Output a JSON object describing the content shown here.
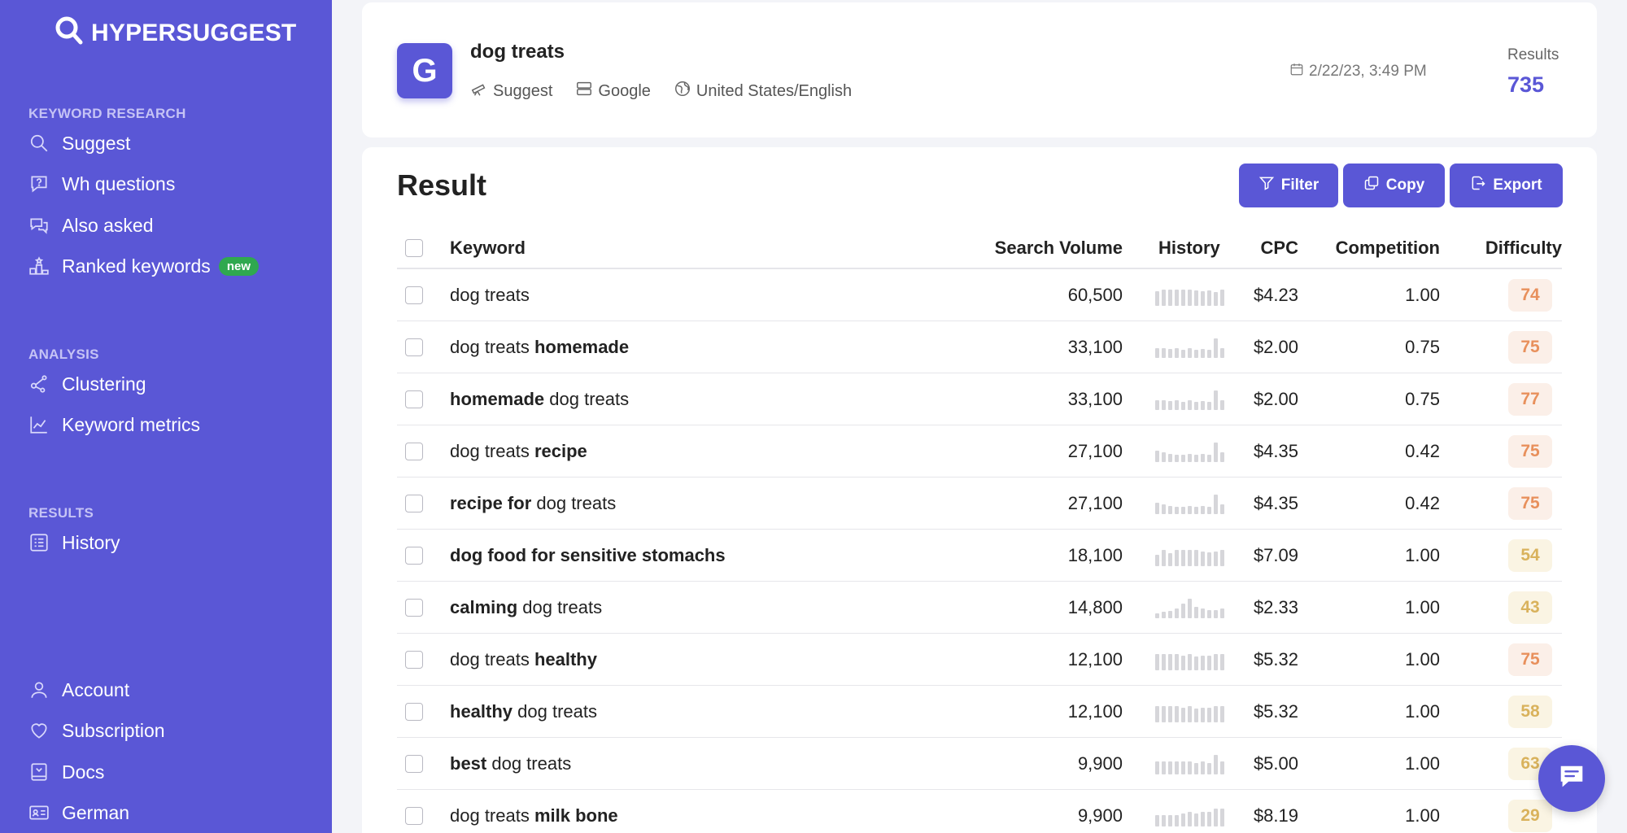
{
  "app": {
    "logo_text": "HYPERSUGGEST"
  },
  "sidebar": {
    "sections": [
      {
        "title": "KEYWORD RESEARCH"
      },
      {
        "title": "ANALYSIS"
      },
      {
        "title": "RESULTS"
      }
    ],
    "items": [
      {
        "label": "Suggest",
        "icon": "search-icon"
      },
      {
        "label": "Wh questions",
        "icon": "question-bubble-icon"
      },
      {
        "label": "Also asked",
        "icon": "chat-bubbles-icon"
      },
      {
        "label": "Ranked keywords",
        "icon": "ranking-icon",
        "badge": "new"
      },
      {
        "label": "Clustering",
        "icon": "cluster-icon"
      },
      {
        "label": "Keyword metrics",
        "icon": "chart-icon"
      },
      {
        "label": "History",
        "icon": "list-icon"
      },
      {
        "label": "Account",
        "icon": "user-icon"
      },
      {
        "label": "Subscription",
        "icon": "heart-icon"
      },
      {
        "label": "Docs",
        "icon": "book-icon"
      },
      {
        "label": "German",
        "icon": "language-icon"
      }
    ]
  },
  "header": {
    "engine_letter": "G",
    "keyword": "dog treats",
    "meta": [
      {
        "label": "Suggest",
        "icon": "telescope-icon"
      },
      {
        "label": "Google",
        "icon": "server-icon"
      },
      {
        "label": "United States/English",
        "icon": "globe-icon"
      }
    ],
    "date": "2/22/23, 3:49 PM",
    "results_label": "Results",
    "results_value": "735"
  },
  "result": {
    "title": "Result",
    "buttons": {
      "filter": "Filter",
      "copy": "Copy",
      "export": "Export"
    },
    "columns": {
      "keyword": "Keyword",
      "volume": "Search Volume",
      "history": "History",
      "cpc": "CPC",
      "competition": "Competition",
      "difficulty": "Difficulty"
    },
    "rows": [
      {
        "parts": [
          [
            "dog treats",
            false
          ]
        ],
        "volume": "60,500",
        "cpc": "$4.23",
        "competition": "1.00",
        "difficulty": "74",
        "level": "hi",
        "history": [
          18,
          20,
          20,
          20,
          20,
          20,
          19,
          18,
          19,
          17,
          20
        ]
      },
      {
        "parts": [
          [
            "dog treats ",
            false
          ],
          [
            "homemade",
            true
          ]
        ],
        "volume": "33,100",
        "cpc": "$2.00",
        "competition": "0.75",
        "difficulty": "75",
        "level": "hi",
        "history": [
          12,
          12,
          11,
          12,
          10,
          12,
          10,
          11,
          10,
          24,
          12
        ]
      },
      {
        "parts": [
          [
            "homemade",
            true
          ],
          [
            " dog treats",
            false
          ]
        ],
        "volume": "33,100",
        "cpc": "$2.00",
        "competition": "0.75",
        "difficulty": "77",
        "level": "hi",
        "history": [
          12,
          12,
          11,
          12,
          10,
          12,
          10,
          11,
          10,
          24,
          12
        ]
      },
      {
        "parts": [
          [
            "dog treats ",
            false
          ],
          [
            "recipe",
            true
          ]
        ],
        "volume": "27,100",
        "cpc": "$4.35",
        "competition": "0.42",
        "difficulty": "75",
        "level": "hi",
        "history": [
          14,
          12,
          10,
          9,
          9,
          10,
          9,
          10,
          9,
          24,
          12
        ]
      },
      {
        "parts": [
          [
            "recipe for",
            true
          ],
          [
            " dog treats",
            false
          ]
        ],
        "volume": "27,100",
        "cpc": "$4.35",
        "competition": "0.42",
        "difficulty": "75",
        "level": "hi",
        "history": [
          14,
          12,
          10,
          9,
          9,
          10,
          9,
          10,
          9,
          24,
          12
        ]
      },
      {
        "parts": [
          [
            "dog food for sensitive stomachs",
            true
          ]
        ],
        "volume": "18,100",
        "cpc": "$7.09",
        "competition": "1.00",
        "difficulty": "54",
        "level": "mid",
        "history": [
          14,
          20,
          16,
          20,
          20,
          20,
          20,
          18,
          17,
          18,
          20
        ]
      },
      {
        "parts": [
          [
            "calming",
            true
          ],
          [
            " dog treats",
            false
          ]
        ],
        "volume": "14,800",
        "cpc": "$2.33",
        "competition": "1.00",
        "difficulty": "43",
        "level": "mid",
        "history": [
          6,
          8,
          9,
          12,
          18,
          24,
          14,
          12,
          10,
          10,
          12
        ]
      },
      {
        "parts": [
          [
            "dog treats ",
            false
          ],
          [
            "healthy",
            true
          ]
        ],
        "volume": "12,100",
        "cpc": "$5.32",
        "competition": "1.00",
        "difficulty": "75",
        "level": "hi",
        "history": [
          20,
          20,
          20,
          20,
          18,
          20,
          17,
          18,
          18,
          20,
          20
        ]
      },
      {
        "parts": [
          [
            "healthy",
            true
          ],
          [
            " dog treats",
            false
          ]
        ],
        "volume": "12,100",
        "cpc": "$5.32",
        "competition": "1.00",
        "difficulty": "58",
        "level": "mid",
        "history": [
          20,
          20,
          20,
          20,
          18,
          20,
          17,
          18,
          18,
          20,
          20
        ]
      },
      {
        "parts": [
          [
            "best",
            true
          ],
          [
            " dog treats",
            false
          ]
        ],
        "volume": "9,900",
        "cpc": "$5.00",
        "competition": "1.00",
        "difficulty": "63",
        "level": "mid",
        "history": [
          16,
          16,
          16,
          16,
          16,
          16,
          14,
          16,
          14,
          24,
          16
        ]
      },
      {
        "parts": [
          [
            "dog treats ",
            false
          ],
          [
            "milk bone",
            true
          ]
        ],
        "volume": "9,900",
        "cpc": "$8.19",
        "competition": "1.00",
        "difficulty": "29",
        "level": "lo",
        "history": [
          14,
          14,
          14,
          14,
          16,
          18,
          16,
          18,
          18,
          22,
          22
        ]
      }
    ]
  },
  "colors": {
    "brand": "#5a57d6",
    "badge_new": "#2fa84f",
    "difficulty_high": "#e8905c",
    "difficulty_mid": "#d9b25c"
  }
}
